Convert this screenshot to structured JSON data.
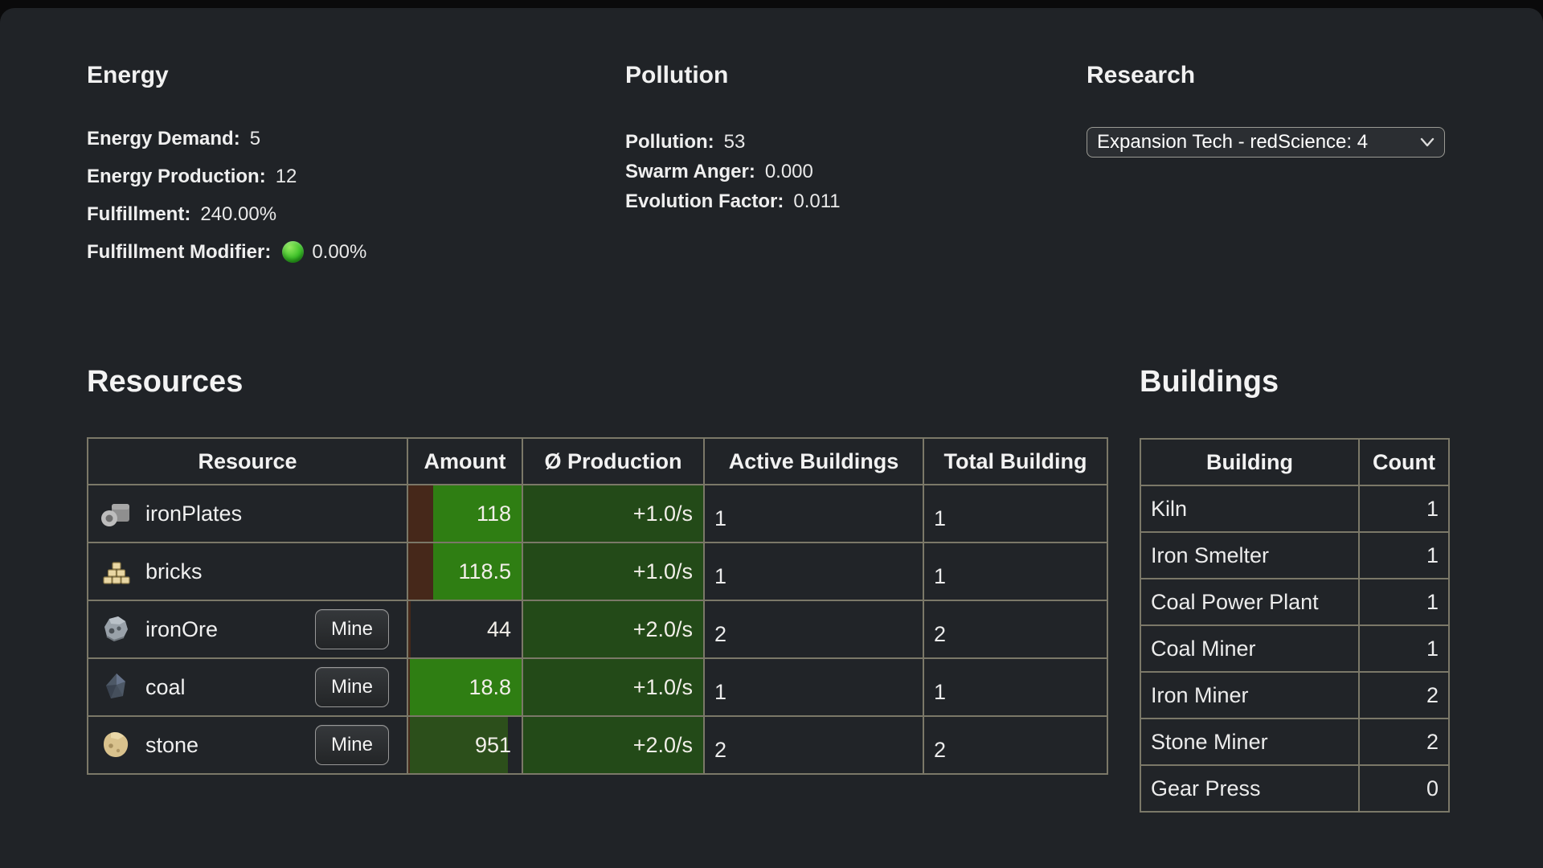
{
  "energy": {
    "title": "Energy",
    "lines": [
      {
        "label": "Energy Demand:",
        "value": "5"
      },
      {
        "label": "Energy Production:",
        "value": "12"
      },
      {
        "label": "Fulfillment:",
        "value": "240.00%"
      },
      {
        "label": "Fulfillment Modifier:",
        "value": "0.00%",
        "indicator": "green-circle"
      }
    ]
  },
  "pollution": {
    "title": "Pollution",
    "lines": [
      {
        "label": "Pollution:",
        "value": "53"
      },
      {
        "label": "Swarm Anger:",
        "value": "0.000"
      },
      {
        "label": "Evolution Factor:",
        "value": "0.011"
      }
    ]
  },
  "research": {
    "title": "Research",
    "selected_option": "Expansion Tech - redScience: 4"
  },
  "resources": {
    "title": "Resources",
    "columns": [
      "Resource",
      "Amount",
      "Ø Production",
      "Active Buildings",
      "Total Building"
    ],
    "mine_button_label": "Mine",
    "rows": [
      {
        "name": "ironPlates",
        "icon": "iron-plates",
        "mine": false,
        "amount": "118",
        "bar": {
          "red_pct": 22,
          "fill": "bright",
          "fill_pct": 100
        },
        "production": "+1.0/s",
        "active": "1",
        "total": "1"
      },
      {
        "name": "bricks",
        "icon": "bricks",
        "mine": false,
        "amount": "118.5",
        "bar": {
          "red_pct": 22,
          "fill": "bright",
          "fill_pct": 100
        },
        "production": "+1.0/s",
        "active": "1",
        "total": "1"
      },
      {
        "name": "ironOre",
        "icon": "iron-ore",
        "mine": true,
        "amount": "44",
        "bar": {
          "red_pct": 2,
          "fill": "none",
          "fill_pct": 2
        },
        "production": "+2.0/s",
        "active": "2",
        "total": "2"
      },
      {
        "name": "coal",
        "icon": "coal",
        "mine": true,
        "amount": "18.8",
        "bar": {
          "red_pct": 1.5,
          "fill": "bright",
          "fill_pct": 100
        },
        "production": "+1.0/s",
        "active": "1",
        "total": "1"
      },
      {
        "name": "stone",
        "icon": "stone",
        "mine": true,
        "amount": "951",
        "bar": {
          "red_pct": 1.5,
          "fill": "dim",
          "fill_pct": 88
        },
        "production": "+2.0/s",
        "active": "2",
        "total": "2"
      }
    ]
  },
  "buildings": {
    "title": "Buildings",
    "columns": [
      "Building",
      "Count"
    ],
    "rows": [
      {
        "name": "Kiln",
        "count": "1"
      },
      {
        "name": "Iron Smelter",
        "count": "1"
      },
      {
        "name": "Coal Power Plant",
        "count": "1"
      },
      {
        "name": "Coal Miner",
        "count": "1"
      },
      {
        "name": "Iron Miner",
        "count": "2"
      },
      {
        "name": "Stone Miner",
        "count": "2"
      },
      {
        "name": "Gear Press",
        "count": "0"
      }
    ]
  },
  "colors": {
    "bar_bright_green": "#2f7e13",
    "bar_dim_green": "#2c4f1b",
    "production_green": "#234a18",
    "bar_red": "#46281a",
    "indicator_green": "#2fae1f",
    "table_border": "#7b7868",
    "page_background": "#202327"
  }
}
